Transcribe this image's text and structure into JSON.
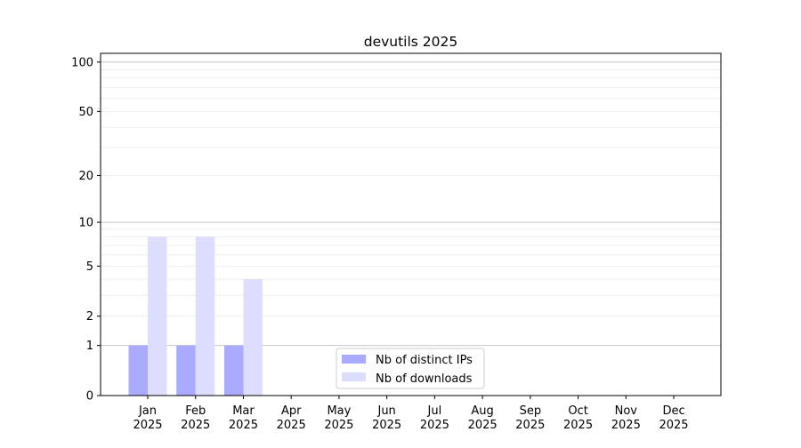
{
  "chart_data": {
    "type": "bar",
    "title": "devutils 2025",
    "xlabel": "",
    "ylabel": "",
    "y_scale": "log(1+y)",
    "ylim": [
      0,
      113
    ],
    "y_ticks": [
      0,
      1,
      2,
      5,
      10,
      20,
      50,
      100
    ],
    "y_major_grid": [
      1,
      10,
      100
    ],
    "y_minor_grid": [
      2,
      3,
      4,
      5,
      6,
      7,
      8,
      9,
      20,
      30,
      40,
      50,
      60,
      70,
      80,
      90
    ],
    "grid": true,
    "legend_position": "bottom-center",
    "categories": [
      [
        "Jan",
        "2025"
      ],
      [
        "Feb",
        "2025"
      ],
      [
        "Mar",
        "2025"
      ],
      [
        "Apr",
        "2025"
      ],
      [
        "May",
        "2025"
      ],
      [
        "Jun",
        "2025"
      ],
      [
        "Jul",
        "2025"
      ],
      [
        "Aug",
        "2025"
      ],
      [
        "Sep",
        "2025"
      ],
      [
        "Oct",
        "2025"
      ],
      [
        "Nov",
        "2025"
      ],
      [
        "Dec",
        "2025"
      ]
    ],
    "series": [
      {
        "name": "Nb of distinct IPs",
        "color": "#aaaaff",
        "values": [
          1,
          1,
          1,
          0,
          0,
          0,
          0,
          0,
          0,
          0,
          0,
          0
        ]
      },
      {
        "name": "Nb of downloads",
        "color": "#ddddff",
        "values": [
          8,
          8,
          4,
          0,
          0,
          0,
          0,
          0,
          0,
          0,
          0,
          0
        ]
      }
    ]
  }
}
